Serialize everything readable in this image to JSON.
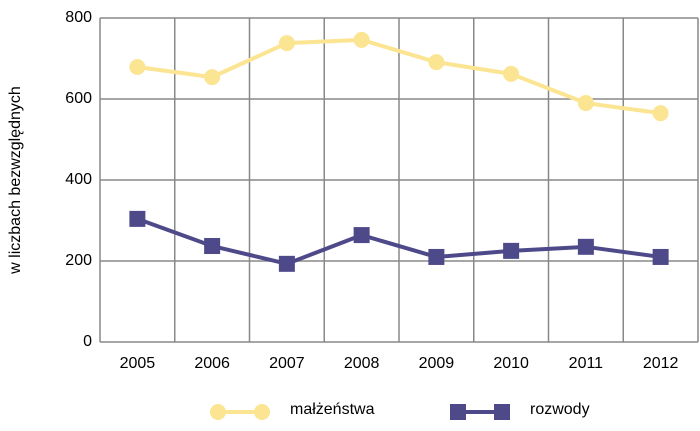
{
  "chart_data": {
    "type": "line",
    "y_label": "w liczbach bezwzględnych",
    "categories": [
      "2005",
      "2006",
      "2007",
      "2008",
      "2009",
      "2010",
      "2011",
      "2012"
    ],
    "series": [
      {
        "name": "małżeństwa",
        "color": "#fbe592",
        "marker": "circle",
        "values": [
          679,
          654,
          738,
          746,
          691,
          662,
          590,
          565
        ]
      },
      {
        "name": "rozwody",
        "color": "#4e4a8a",
        "marker": "square",
        "values": [
          304,
          237,
          193,
          264,
          210,
          225,
          235,
          210
        ]
      }
    ],
    "ylim": [
      0,
      800
    ],
    "yticks": [
      0,
      200,
      400,
      600,
      800
    ],
    "grid": true,
    "legend": "bottom"
  }
}
